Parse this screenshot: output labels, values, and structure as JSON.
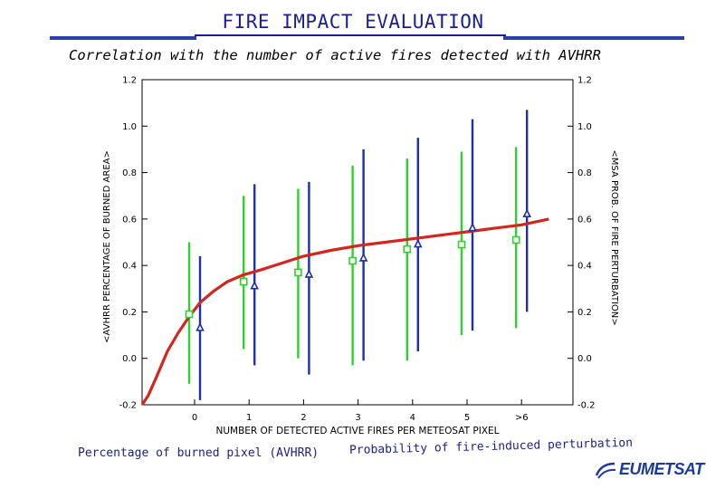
{
  "header": {
    "title": "FIRE IMPACT EVALUATION",
    "subtitle": "Correlation with the number of active fires detected with AVHRR"
  },
  "legend": {
    "burned_label": "Percentage of burned pixel (AVHRR)",
    "probability_label": "Probability of fire-induced perturbation"
  },
  "logo": {
    "text": "EUMETSAT"
  },
  "colors": {
    "title": "#1a1f8f",
    "band": "#2a3fa8",
    "burned_series": "#2ed12e",
    "probability_series": "#1c2fb0",
    "fit_curve": "#d4261c"
  },
  "chart_data": {
    "type": "scatter",
    "xlabel": "NUMBER OF DETECTED ACTIVE FIRES PER METEOSAT PIXEL",
    "ylabel_left": "<AVHRR PERCENTAGE OF BURNED AREA>",
    "ylabel_right": "<MSA PROB. OF FIRE PERTURBATION>",
    "categories": [
      "0",
      "1",
      "2",
      "3",
      "4",
      "5",
      ">6"
    ],
    "y_ticks": [
      "-0.2",
      "0.0",
      "0.2",
      "0.4",
      "0.6",
      "0.8",
      "1.0",
      "1.2"
    ],
    "ylim": [
      -0.2,
      1.2
    ],
    "grid": false,
    "series": [
      {
        "marker": "square",
        "values": [
          0.19,
          0.33,
          0.37,
          0.42,
          0.47,
          0.49,
          0.51
        ],
        "error_low": [
          -0.11,
          0.04,
          0.0,
          -0.03,
          -0.01,
          0.1,
          0.13
        ],
        "error_high": [
          0.5,
          0.7,
          0.73,
          0.83,
          0.86,
          0.89,
          0.91
        ]
      },
      {
        "marker": "triangle",
        "values": [
          0.13,
          0.31,
          0.36,
          0.43,
          0.49,
          0.56,
          0.62
        ],
        "error_low": [
          -0.18,
          -0.03,
          -0.07,
          -0.01,
          0.03,
          0.12,
          0.2
        ],
        "error_high": [
          0.44,
          0.75,
          0.76,
          0.9,
          0.95,
          1.03,
          1.07
        ]
      }
    ],
    "fit_curve": {
      "x": [
        -0.98,
        -0.85,
        -0.7,
        -0.5,
        -0.3,
        -0.1,
        0.1,
        0.35,
        0.6,
        0.9,
        1.2,
        1.6,
        2.0,
        2.5,
        3.0,
        3.5,
        4.0,
        4.5,
        5.0,
        5.5,
        6.0,
        6.5
      ],
      "y": [
        -0.22,
        -0.16,
        -0.08,
        0.03,
        0.11,
        0.18,
        0.24,
        0.29,
        0.33,
        0.36,
        0.38,
        0.41,
        0.44,
        0.465,
        0.485,
        0.5,
        0.515,
        0.53,
        0.545,
        0.56,
        0.575,
        0.6
      ]
    }
  }
}
